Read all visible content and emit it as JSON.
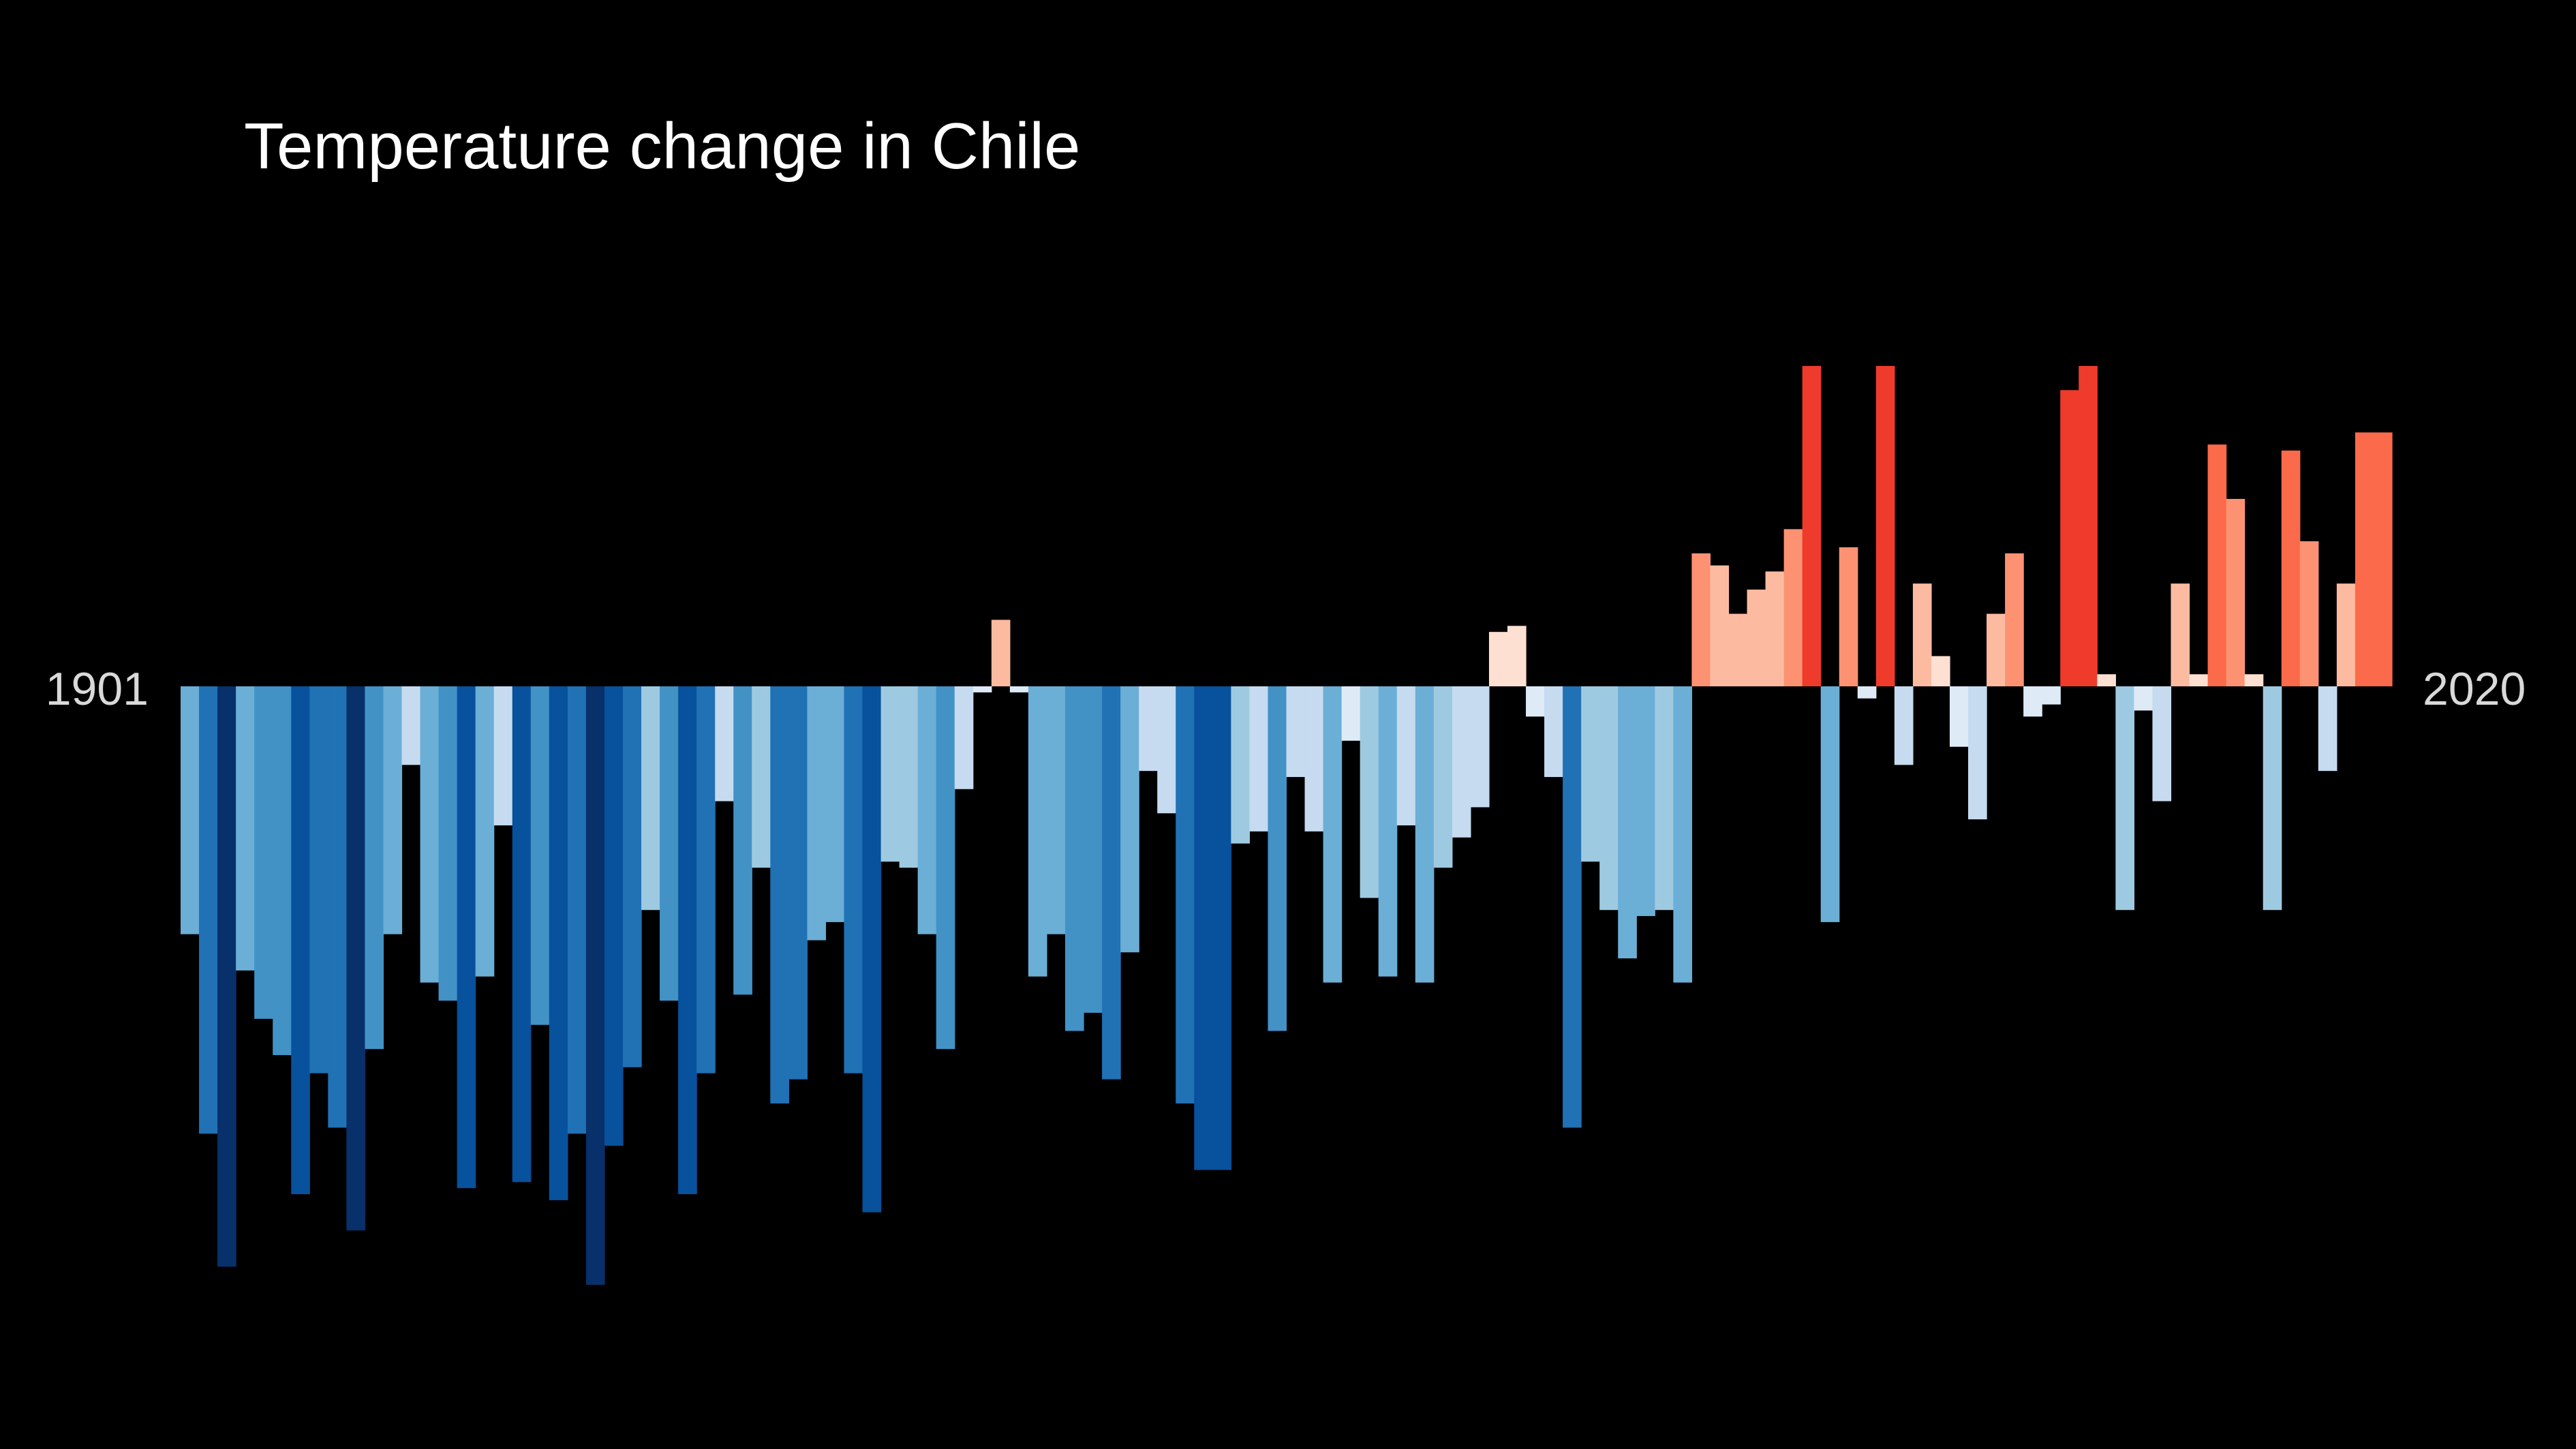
{
  "chart_data": {
    "type": "bar",
    "title": "Temperature change in Chile",
    "start_label": "1901",
    "end_label": "2020",
    "start_year": 1901,
    "end_year": 2020,
    "units": "relative anomaly (baseline = 0)",
    "ylim": [
      -1.0,
      0.86
    ],
    "grid": false,
    "legend": "none",
    "values": [
      -0.41,
      -0.74,
      -0.96,
      -0.47,
      -0.55,
      -0.61,
      -0.84,
      -0.64,
      -0.73,
      -0.9,
      -0.6,
      -0.41,
      -0.13,
      -0.49,
      -0.52,
      -0.83,
      -0.48,
      -0.23,
      -0.82,
      -0.56,
      -0.85,
      -0.74,
      -0.99,
      -0.76,
      -0.63,
      -0.37,
      -0.52,
      -0.84,
      -0.64,
      -0.19,
      -0.51,
      -0.3,
      -0.69,
      -0.65,
      -0.42,
      -0.39,
      -0.64,
      -0.87,
      -0.29,
      -0.3,
      -0.41,
      -0.6,
      -0.17,
      -0.01,
      0.11,
      -0.01,
      -0.48,
      -0.41,
      -0.57,
      -0.54,
      -0.65,
      -0.44,
      -0.14,
      -0.21,
      -0.69,
      -0.8,
      -0.8,
      -0.26,
      -0.24,
      -0.57,
      -0.15,
      -0.24,
      -0.49,
      -0.09,
      -0.35,
      -0.48,
      -0.23,
      -0.49,
      -0.3,
      -0.25,
      -0.2,
      0.09,
      0.1,
      -0.05,
      -0.15,
      -0.73,
      -0.29,
      -0.37,
      -0.45,
      -0.38,
      -0.37,
      -0.49,
      0.22,
      0.2,
      0.12,
      0.16,
      0.19,
      0.26,
      0.53,
      -0.39,
      0.23,
      -0.02,
      0.53,
      -0.13,
      0.17,
      0.05,
      -0.1,
      -0.22,
      0.12,
      0.22,
      -0.05,
      -0.03,
      0.49,
      0.53,
      0.02,
      -0.37,
      -0.04,
      -0.19,
      0.17,
      0.02,
      0.4,
      0.31,
      0.02,
      -0.37,
      0.39,
      0.24,
      -0.14,
      0.17,
      0.42,
      0.42
    ]
  }
}
